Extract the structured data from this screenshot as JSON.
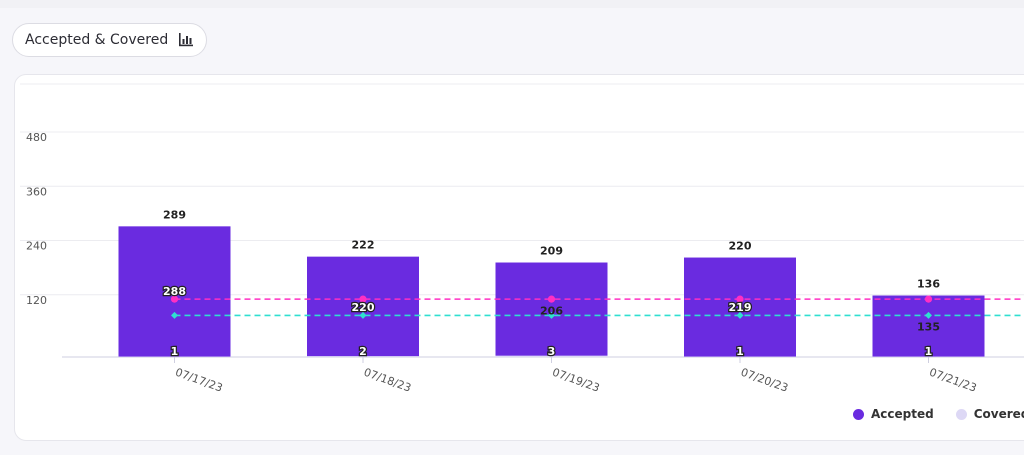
{
  "header": {
    "pill_label": "Accepted & Covered",
    "pill_icon": "bar-chart-icon"
  },
  "chart_data": {
    "type": "bar",
    "categories": [
      "07/17/23",
      "07/18/23",
      "07/19/23",
      "07/20/23",
      "07/21/23"
    ],
    "series": [
      {
        "name": "Accepted",
        "type": "bar",
        "color": "#6a2be0",
        "values": [
          289,
          222,
          209,
          220,
          136
        ],
        "labels": [
          "289",
          "222",
          "209",
          "220",
          "136"
        ]
      },
      {
        "name": "Covered",
        "type": "bar",
        "color": "#ddd8f5",
        "values": [
          1,
          2,
          3,
          1,
          1
        ],
        "labels": [
          "1",
          "2",
          "3",
          "1",
          "1"
        ]
      }
    ],
    "lines": [
      {
        "color": "#ff2fc3",
        "style": "dashed",
        "value": 128,
        "points": [
          128,
          128,
          128,
          128,
          128
        ],
        "labels": [
          "288",
          "220",
          "",
          "219",
          ""
        ]
      },
      {
        "color": "#2fe0d0",
        "style": "dashed",
        "value": 92,
        "points": [
          92,
          92,
          92,
          92,
          92
        ],
        "labels": [
          "",
          "",
          "206",
          "",
          "135"
        ]
      }
    ],
    "y_ticks": [
      120,
      240,
      360,
      480
    ],
    "ylim": [
      0,
      480
    ],
    "grid": true,
    "legend": [
      {
        "name": "Accepted",
        "color": "#6a2be0"
      },
      {
        "name": "Covered",
        "color": "#ddd8f5"
      }
    ],
    "legend_position": "bottom-right"
  }
}
